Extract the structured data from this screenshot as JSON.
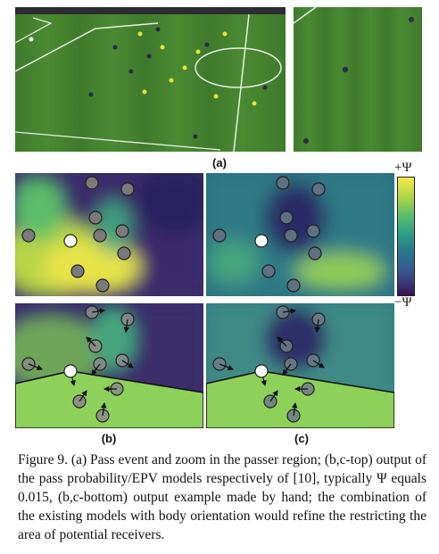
{
  "panel_labels": {
    "a": "(a)",
    "b": "(b)",
    "c": "(c)"
  },
  "colorbar": {
    "top": "+Ψ",
    "bottom": "−Ψ"
  },
  "caption": "Figure 9. (a) Pass event and zoom in the passer region; (b,c-top) output of the pass probability/EPV models respectively of [10], typically Ψ equals 0.015, (b,c-bottom) output example made by hand; the combination of the existing models with body orientation would refine the restricting the area of potential receivers."
}
